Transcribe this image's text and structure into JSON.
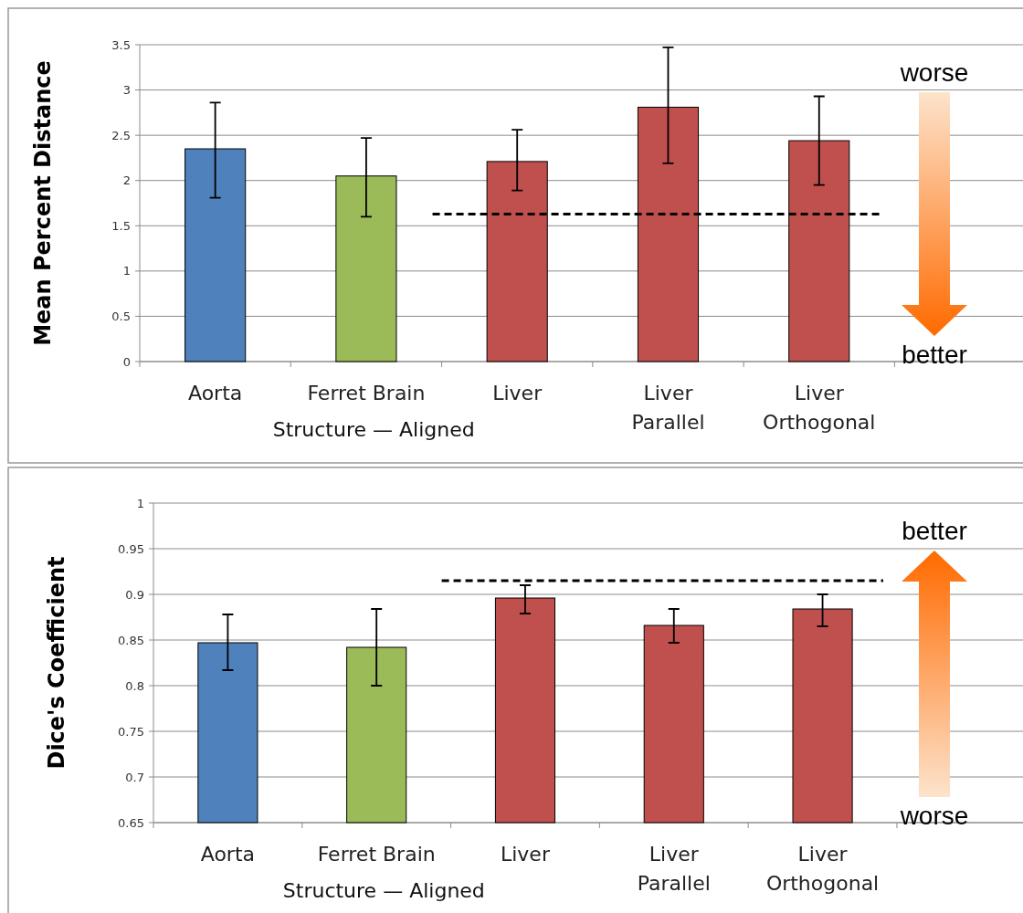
{
  "chart_data": [
    {
      "type": "bar",
      "ylabel": "Mean Percent Distance",
      "xlabel": "Structure — Aligned",
      "categories": [
        "Aorta",
        "Ferret Brain",
        "Liver",
        "Liver\nParallel",
        "Liver\nOrthogonal",
        null
      ],
      "values": [
        2.35,
        2.05,
        2.21,
        2.81,
        2.44,
        null
      ],
      "colors": [
        "#4f81bd",
        "#9bbb59",
        "#c0504d",
        "#c0504d",
        "#c0504d",
        null
      ],
      "errors": [
        [
          1.81,
          2.86
        ],
        [
          1.6,
          2.47
        ],
        [
          1.89,
          2.56
        ],
        [
          2.19,
          3.47
        ],
        [
          1.95,
          2.93
        ],
        null
      ],
      "ylim": [
        0,
        3.5
      ],
      "yticks": [
        0,
        0.5,
        1,
        1.5,
        2,
        2.5,
        3,
        3.5
      ],
      "grid": "y",
      "ref_lines": [
        {
          "axis": "y",
          "value": 1.63,
          "line_style": "dashed",
          "color": "#000000"
        }
      ],
      "annotations": [
        "worse",
        "better"
      ]
    },
    {
      "type": "bar",
      "ylabel": "Dice's Coefficient",
      "xlabel": "Structure — Aligned",
      "categories": [
        "Aorta",
        "Ferret Brain",
        "Liver",
        "Liver\nParallel",
        "Liver\nOrthogonal",
        null
      ],
      "values": [
        0.847,
        0.842,
        0.896,
        0.866,
        0.884,
        null
      ],
      "colors": [
        "#4f81bd",
        "#9bbb59",
        "#c0504d",
        "#c0504d",
        "#c0504d",
        null
      ],
      "errors": [
        [
          0.817,
          0.878
        ],
        [
          0.8,
          0.884
        ],
        [
          0.879,
          0.91
        ],
        [
          0.847,
          0.884
        ],
        [
          0.865,
          0.9
        ],
        null
      ],
      "ylim": [
        0.65,
        1
      ],
      "yticks": [
        0.65,
        0.7,
        0.75,
        0.8,
        0.85,
        0.9,
        0.95,
        1
      ],
      "grid": "y",
      "ref_lines": [
        {
          "axis": "y",
          "value": 0.915,
          "line_style": "dashed",
          "color": "#000000"
        }
      ],
      "annotations": [
        "better",
        "worse"
      ]
    }
  ]
}
